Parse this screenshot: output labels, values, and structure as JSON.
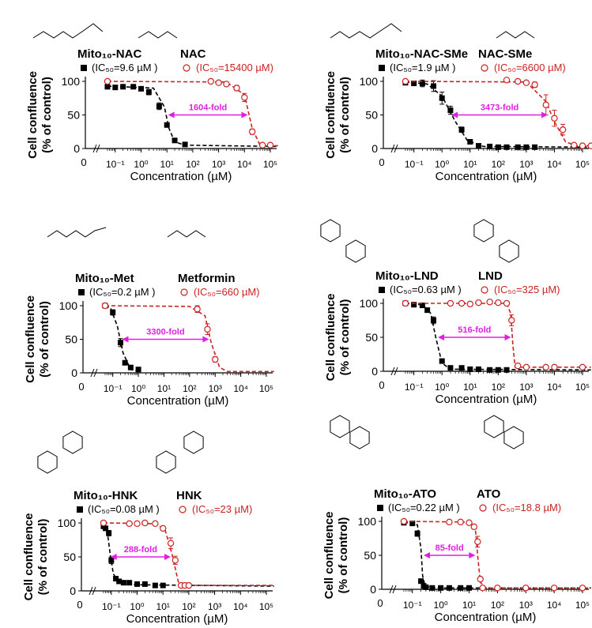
{
  "chart_data": [
    {
      "type": "scatter",
      "ylabel_line1": "Cell confluence",
      "ylabel_line2": "(% of control)",
      "xlabel": "Concentration (µM)",
      "ylim": [
        0,
        100
      ],
      "yticks": [
        "0",
        "50",
        "100"
      ],
      "xticks": [
        "0",
        "10⁻¹",
        "10⁰",
        "10¹",
        "10²",
        "10³",
        "10⁴",
        "10⁵"
      ],
      "compound_left": {
        "name": "Mito₁₀-NAC",
        "legend": "(IC₅₀=9.6 µM )",
        "color": "#000000"
      },
      "compound_right": {
        "name": "NAC",
        "legend": "(IC₅₀=15400 µM)",
        "color": "#cc2222"
      },
      "fold_label": "1604-fold",
      "fold_range": [
        9.6,
        15400
      ],
      "series": [
        {
          "name": "Mito10-NAC",
          "color": "#000000",
          "marker": "square",
          "x": [
            0.05,
            0.1,
            0.2,
            0.5,
            1,
            2,
            5,
            10,
            20,
            50
          ],
          "y": [
            92,
            91,
            92,
            92,
            89,
            84,
            63,
            35,
            12,
            6
          ],
          "err": [
            3,
            3,
            2,
            2,
            2,
            4,
            5,
            3,
            2,
            1
          ],
          "fit": [
            [
              0.05,
              93
            ],
            [
              3,
              90
            ],
            [
              8,
              62
            ],
            [
              12,
              30
            ],
            [
              20,
              10
            ],
            [
              50,
              5
            ],
            [
              200000,
              3
            ]
          ]
        },
        {
          "name": "NAC",
          "color": "#cc2222",
          "marker": "circle",
          "x": [
            0.05,
            500,
            1000,
            2000,
            5000,
            10000,
            20000,
            50000,
            100000
          ],
          "y": [
            100,
            100,
            98,
            96,
            90,
            76,
            25,
            5,
            5
          ],
          "err": [
            1,
            2,
            2,
            3,
            4,
            6,
            4,
            1,
            1
          ],
          "fit": [
            [
              0.05,
              100
            ],
            [
              2000,
              99
            ],
            [
              10000,
              80
            ],
            [
              20000,
              30
            ],
            [
              40000,
              5
            ],
            [
              200000,
              4
            ]
          ]
        }
      ]
    },
    {
      "type": "scatter",
      "ylabel_line1": "Cell confluence",
      "ylabel_line2": "(% of control)",
      "xlabel": "Concentration (µM)",
      "ylim": [
        0,
        100
      ],
      "yticks": [
        "0",
        "50",
        "100"
      ],
      "xticks": [
        "0",
        "10⁻¹",
        "10⁰",
        "10¹",
        "10²",
        "10³",
        "10⁴",
        "10⁵"
      ],
      "compound_left": {
        "name": "Mito₁₀-NAC-SMe",
        "legend": "(IC₅₀=1.9 µM )",
        "color": "#000000"
      },
      "compound_right": {
        "name": "NAC-SMe",
        "legend": "(IC₅₀=6600 µM)",
        "color": "#cc2222"
      },
      "fold_label": "3473-fold",
      "fold_range": [
        1.9,
        6600
      ],
      "series": [
        {
          "name": "Mito10-NAC-SMe",
          "color": "#000000",
          "marker": "square",
          "x": [
            0.05,
            0.1,
            0.2,
            0.5,
            1,
            2,
            5,
            10,
            20,
            50,
            100,
            200,
            500,
            1000,
            2000
          ],
          "y": [
            98,
            97,
            97,
            93,
            75,
            57,
            28,
            10,
            4,
            3,
            2,
            2,
            2,
            2,
            2
          ],
          "err": [
            2,
            3,
            5,
            8,
            9,
            6,
            4,
            2,
            1,
            1,
            1,
            1,
            1,
            1,
            1
          ],
          "fit": [
            [
              0.05,
              99
            ],
            [
              0.3,
              96
            ],
            [
              1,
              78
            ],
            [
              3,
              40
            ],
            [
              8,
              12
            ],
            [
              30,
              3
            ],
            [
              200000,
              2
            ]
          ]
        },
        {
          "name": "NAC-SMe",
          "color": "#cc2222",
          "marker": "circle",
          "x": [
            0.05,
            200,
            500,
            1000,
            2000,
            5000,
            10000,
            20000,
            50000,
            100000,
            200000
          ],
          "y": [
            100,
            102,
            100,
            98,
            95,
            65,
            45,
            28,
            5,
            4,
            4
          ],
          "err": [
            1,
            2,
            3,
            3,
            4,
            15,
            12,
            8,
            2,
            1,
            1
          ],
          "fit": [
            [
              0.05,
              100
            ],
            [
              1000,
              99
            ],
            [
              5000,
              70
            ],
            [
              10000,
              40
            ],
            [
              25000,
              10
            ],
            [
              60000,
              4
            ],
            [
              200000,
              4
            ]
          ]
        }
      ]
    },
    {
      "type": "scatter",
      "ylabel_line1": "Cell confluence",
      "ylabel_line2": "(% of control)",
      "xlabel": "Concentration (µM)",
      "ylim": [
        0,
        100
      ],
      "yticks": [
        "0",
        "50",
        "100"
      ],
      "xticks": [
        "0",
        "10⁻¹",
        "10⁰",
        "10¹",
        "10²",
        "10³",
        "10⁴",
        "10⁵"
      ],
      "compound_left": {
        "name": "Mito₁₀-Met",
        "legend": "(IC₅₀=0.2 µM )",
        "color": "#000000"
      },
      "compound_right": {
        "name": "Metformin",
        "legend": "(IC₅₀=660 µM)",
        "color": "#cc2222"
      },
      "fold_label": "3300-fold",
      "fold_range": [
        0.2,
        660
      ],
      "series": [
        {
          "name": "Mito10-Met",
          "color": "#000000",
          "marker": "square",
          "x": [
            0.05,
            0.1,
            0.2,
            0.3,
            0.5,
            1
          ],
          "y": [
            100,
            90,
            45,
            15,
            8,
            5
          ],
          "err": [
            1,
            4,
            6,
            3,
            2,
            1
          ],
          "fit": [
            [
              0.05,
              100
            ],
            [
              0.08,
              97
            ],
            [
              0.15,
              70
            ],
            [
              0.25,
              30
            ],
            [
              0.5,
              5
            ],
            [
              1,
              2
            ]
          ]
        },
        {
          "name": "Metformin",
          "color": "#cc2222",
          "marker": "circle",
          "x": [
            0.05,
            200,
            500,
            1000
          ],
          "y": [
            100,
            95,
            65,
            20
          ],
          "err": [
            1,
            5,
            8,
            4
          ],
          "fit": [
            [
              0.05,
              100
            ],
            [
              100,
              99
            ],
            [
              400,
              85
            ],
            [
              700,
              45
            ],
            [
              1500,
              8
            ],
            [
              3000,
              2
            ],
            [
              200000,
              2
            ]
          ]
        }
      ]
    },
    {
      "type": "scatter",
      "ylabel_line1": "Cell confluence",
      "ylabel_line2": "(% of control)",
      "xlabel": "Concentration (µM)",
      "ylim": [
        0,
        100
      ],
      "yticks": [
        "0",
        "50",
        "100"
      ],
      "xticks": [
        "0",
        "10⁻¹",
        "10⁰",
        "10¹",
        "10²",
        "10³",
        "10⁴",
        "10⁵"
      ],
      "compound_left": {
        "name": "Mito₁₀-LND",
        "legend": "(IC₅₀=0.63 µM )",
        "color": "#000000"
      },
      "compound_right": {
        "name": "LND",
        "legend": "(IC₅₀=325 µM)",
        "color": "#cc2222"
      },
      "fold_label": "516-fold",
      "fold_range": [
        0.63,
        325
      ],
      "series": [
        {
          "name": "Mito10-LND",
          "color": "#000000",
          "marker": "square",
          "x": [
            0.05,
            0.1,
            0.2,
            0.3,
            0.5,
            1,
            2,
            5,
            10,
            20,
            50,
            100,
            200
          ],
          "y": [
            100,
            98,
            97,
            90,
            75,
            15,
            5,
            5,
            3,
            3,
            2,
            2,
            2
          ],
          "err": [
            1,
            1,
            2,
            3,
            5,
            3,
            1,
            1,
            1,
            1,
            1,
            1,
            1
          ],
          "fit": [
            [
              0.05,
              100
            ],
            [
              0.2,
              98
            ],
            [
              0.4,
              85
            ],
            [
              0.6,
              50
            ],
            [
              1,
              12
            ],
            [
              2,
              3
            ],
            [
              200000,
              2
            ]
          ]
        },
        {
          "name": "LND",
          "color": "#cc2222",
          "marker": "circle",
          "x": [
            0.05,
            2,
            5,
            10,
            20,
            50,
            100,
            200,
            300,
            500,
            1000,
            5000,
            10000,
            100000
          ],
          "y": [
            100,
            100,
            100,
            99,
            101,
            102,
            101,
            100,
            75,
            8,
            6,
            6,
            6,
            6
          ],
          "err": [
            1,
            1,
            1,
            1,
            1,
            1,
            1,
            2,
            8,
            2,
            1,
            1,
            1,
            1
          ],
          "fit": [
            [
              0.05,
              100
            ],
            [
              200,
              100
            ],
            [
              280,
              85
            ],
            [
              330,
              40
            ],
            [
              400,
              6
            ],
            [
              200000,
              6
            ]
          ]
        }
      ]
    },
    {
      "type": "scatter",
      "ylabel_line1": "Cell confluence",
      "ylabel_line2": "(% of control)",
      "xlabel": "Concentration (µM)",
      "ylim": [
        0,
        100
      ],
      "yticks": [
        "0",
        "50",
        "100"
      ],
      "xticks": [
        "0",
        "10⁻¹",
        "10⁰",
        "10¹",
        "10²",
        "10³",
        "10⁴",
        "10⁵"
      ],
      "compound_left": {
        "name": "Mito₁₀-HNK",
        "legend": "(IC₅₀=0.08 µM )",
        "color": "#000000"
      },
      "compound_right": {
        "name": "HNK",
        "legend": "(IC₅₀=23 µM)",
        "color": "#cc2222"
      },
      "fold_label": "288-fold",
      "fold_range": [
        0.08,
        23
      ],
      "series": [
        {
          "name": "Mito10-HNK",
          "color": "#000000",
          "marker": "square",
          "x": [
            0.05,
            0.06,
            0.08,
            0.1,
            0.15,
            0.2,
            0.3,
            0.5,
            1,
            2,
            5,
            10
          ],
          "y": [
            95,
            92,
            85,
            45,
            18,
            14,
            12,
            12,
            10,
            10,
            8,
            8
          ],
          "err": [
            2,
            3,
            4,
            5,
            3,
            2,
            2,
            1,
            1,
            1,
            1,
            1
          ],
          "fit": [
            [
              0.05,
              97
            ],
            [
              0.07,
              88
            ],
            [
              0.09,
              55
            ],
            [
              0.12,
              25
            ],
            [
              0.2,
              12
            ],
            [
              1,
              9
            ],
            [
              200000,
              7
            ]
          ]
        },
        {
          "name": "HNK",
          "color": "#cc2222",
          "marker": "circle",
          "x": [
            0.05,
            0.5,
            1,
            2,
            5,
            10,
            20,
            30,
            50,
            70,
            100
          ],
          "y": [
            100,
            99,
            99,
            100,
            99,
            92,
            70,
            45,
            8,
            8,
            8
          ],
          "err": [
            1,
            1,
            1,
            1,
            2,
            3,
            8,
            6,
            2,
            1,
            1
          ],
          "fit": [
            [
              0.05,
              100
            ],
            [
              5,
              99
            ],
            [
              12,
              90
            ],
            [
              22,
              55
            ],
            [
              40,
              12
            ],
            [
              80,
              8
            ],
            [
              200000,
              8
            ]
          ]
        }
      ]
    },
    {
      "type": "scatter",
      "ylabel_line1": "Cell confluence",
      "ylabel_line2": "(% of control)",
      "xlabel": "Concentration (µM)",
      "ylim": [
        0,
        100
      ],
      "yticks": [
        "0",
        "50",
        "100"
      ],
      "xticks": [
        "0",
        "10⁻¹",
        "10⁰",
        "10¹",
        "10²",
        "10³",
        "10⁴",
        "10⁵"
      ],
      "compound_left": {
        "name": "Mito₁₀-ATO",
        "legend": "(IC₅₀=0.22 µM )",
        "color": "#000000"
      },
      "compound_right": {
        "name": "ATO",
        "legend": "(IC₅₀=18.8 µM)",
        "color": "#cc2222"
      },
      "fold_label": "85-fold",
      "fold_range": [
        0.22,
        18.8
      ],
      "series": [
        {
          "name": "Mito10-ATO",
          "color": "#000000",
          "marker": "square",
          "x": [
            0.05,
            0.1,
            0.15,
            0.2,
            0.25,
            0.3,
            0.5,
            1,
            2,
            5,
            10
          ],
          "y": [
            98,
            97,
            82,
            12,
            5,
            3,
            2,
            2,
            2,
            2,
            2
          ],
          "err": [
            1,
            1,
            4,
            3,
            1,
            1,
            1,
            1,
            1,
            1,
            1
          ],
          "fit": [
            [
              0.05,
              99
            ],
            [
              0.15,
              95
            ],
            [
              0.2,
              60
            ],
            [
              0.23,
              20
            ],
            [
              0.28,
              5
            ],
            [
              0.5,
              2
            ],
            [
              200000,
              2
            ]
          ]
        },
        {
          "name": "ATO",
          "color": "#cc2222",
          "marker": "circle",
          "x": [
            0.05,
            2,
            5,
            10,
            15,
            20,
            25,
            30,
            100,
            1000,
            10000,
            100000
          ],
          "y": [
            100,
            99,
            99,
            98,
            92,
            70,
            15,
            2,
            2,
            2,
            2,
            2
          ],
          "err": [
            1,
            1,
            1,
            1,
            3,
            8,
            3,
            1,
            1,
            1,
            1,
            1
          ],
          "fit": [
            [
              0.05,
              100
            ],
            [
              10,
              99
            ],
            [
              17,
              85
            ],
            [
              20,
              50
            ],
            [
              25,
              10
            ],
            [
              40,
              2
            ],
            [
              200000,
              2
            ]
          ]
        }
      ]
    }
  ]
}
